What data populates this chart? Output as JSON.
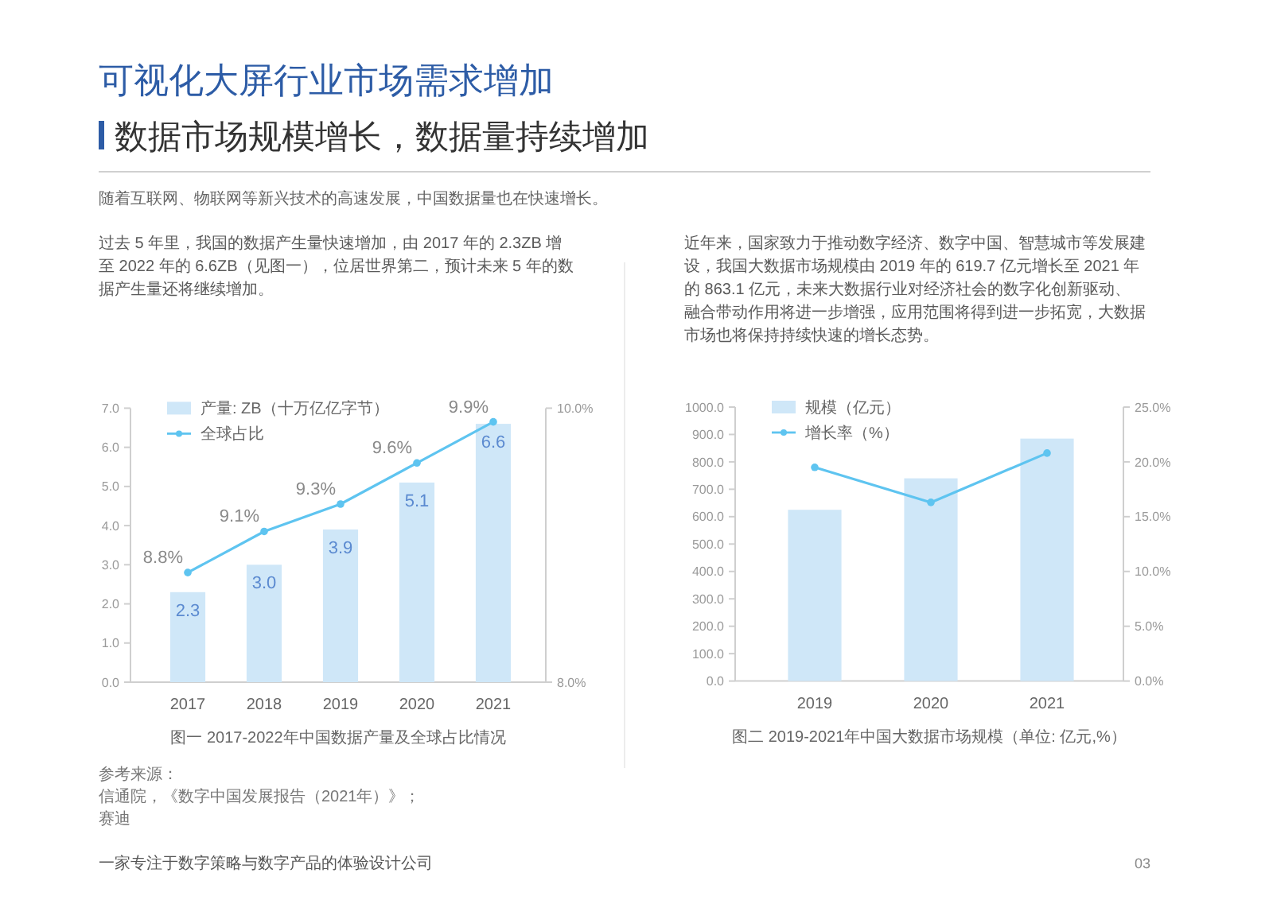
{
  "chart_data": [
    {
      "type": "other",
      "title": "可视化大屏行业市场需求增加",
      "subtitle": "数据市场规模增长，数据量持续增加",
      "annotations": [
        "随着互联网、物联网等新兴技术的高速发展，中国数据量也在快速增长。",
        "参考来源：",
        "信通院，《数字中国发展报告（2021年）》；",
        "赛迪",
        "一家专注于数字策略与数字产品的体验设计公司",
        "03"
      ]
    },
    {
      "type": "bar",
      "title": "图一 2017-2022年中国数据产量及全球占比情况",
      "annotations": [
        "过去 5 年里，我国的数据产生量快速增加，由 2017 年的 2.3ZB 增至 2022 年的 6.6ZB（见图一），位居世界第二，预计未来 5 年的数据产生量还将继续增加。"
      ],
      "categories": [
        "2017",
        "2018",
        "2019",
        "2020",
        "2021"
      ],
      "series": [
        {
          "name": "产量: ZB（十万亿亿字节）",
          "color": "#cfe7f8",
          "values": [
            2.3,
            3.0,
            3.9,
            5.1,
            6.6
          ],
          "value_labels": [
            "2.3",
            "3.0",
            "3.9",
            "5.1",
            "6.6"
          ]
        },
        {
          "name": "全球占比",
          "type": "line",
          "axis": "y2",
          "color": "#5ec4f0",
          "values": [
            8.8,
            9.1,
            9.3,
            9.6,
            9.9
          ],
          "value_labels": [
            "8.8%",
            "9.1%",
            "9.3%",
            "9.6%",
            "9.9%"
          ]
        }
      ],
      "ylim": [
        0,
        7
      ],
      "yticks": [
        {
          "value": 0,
          "label": "0.0"
        },
        {
          "value": 1,
          "label": "1.0"
        },
        {
          "value": 2,
          "label": "2.0"
        },
        {
          "value": 3,
          "label": "3.0"
        },
        {
          "value": 4,
          "label": "4.0"
        },
        {
          "value": 5,
          "label": "5.0"
        },
        {
          "value": 6,
          "label": "6.0"
        },
        {
          "value": 7,
          "label": "7.0"
        }
      ],
      "y2lim": [
        8,
        10
      ],
      "y2ticks": [
        {
          "value": 8,
          "label": "8.0%"
        },
        {
          "value": 10,
          "label": "10.0%"
        }
      ],
      "legend": "top left",
      "marker": "circle"
    },
    {
      "type": "bar",
      "title": "图二 2019-2021年中国大数据市场规模（单位: 亿元,%）",
      "annotations": [
        "近年来，国家致力于推动数字经济、数字中国、智慧城市等发展建设，我国大数据市场规模由 2019 年的 619.7 亿元增长至 2021 年的 863.1 亿元，未来大数据行业对经济社会的数字化创新驱动、融合带动作用将进一步增强，应用范围将得到进一步拓宽，大数据市场也将保持持续快速的增长态势。"
      ],
      "categories": [
        "2019",
        "2020",
        "2021"
      ],
      "series": [
        {
          "name": "规模（亿元）",
          "color": "#cfe7f8",
          "values": [
            625,
            740,
            885
          ]
        },
        {
          "name": "增长率（%）",
          "type": "line",
          "axis": "y2",
          "color": "#5ec4f0",
          "values": [
            19.5,
            16.3,
            20.8
          ]
        }
      ],
      "ylim": [
        0,
        1000
      ],
      "yticks": [
        {
          "value": 0,
          "label": "0.0"
        },
        {
          "value": 100,
          "label": "100.0"
        },
        {
          "value": 200,
          "label": "200.0"
        },
        {
          "value": 300,
          "label": "300.0"
        },
        {
          "value": 400,
          "label": "400.0"
        },
        {
          "value": 500,
          "label": "500.0"
        },
        {
          "value": 600,
          "label": "600.0"
        },
        {
          "value": 700,
          "label": "700.0"
        },
        {
          "value": 800,
          "label": "800.0"
        },
        {
          "value": 900,
          "label": "900.0"
        },
        {
          "value": 1000,
          "label": "1000.0"
        }
      ],
      "y2lim": [
        0,
        25
      ],
      "y2ticks": [
        {
          "value": 0,
          "label": "0.0%"
        },
        {
          "value": 5,
          "label": "5.0%"
        },
        {
          "value": 10,
          "label": "10.0%"
        },
        {
          "value": 15,
          "label": "15.0%"
        },
        {
          "value": 20,
          "label": "20.0%"
        },
        {
          "value": 25,
          "label": "25.0%"
        }
      ],
      "legend": "top left",
      "marker": "circle"
    }
  ]
}
